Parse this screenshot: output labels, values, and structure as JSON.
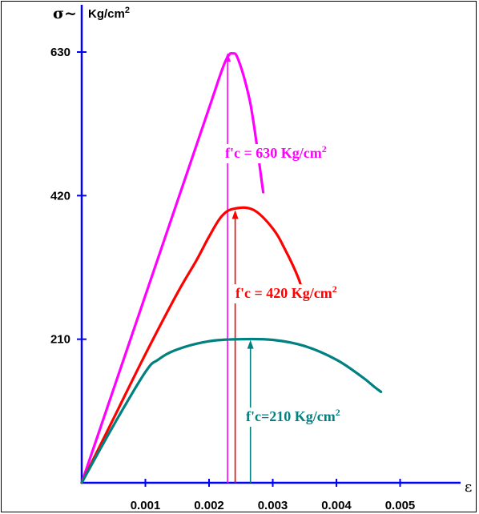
{
  "chart_data": {
    "type": "line",
    "ylabel_symbol": "σ~",
    "ylabel_unit": "Kg/cm",
    "ylabel_unit_exp": "2",
    "xlabel_symbol": "ε",
    "xlim": [
      0,
      0.00573
    ],
    "ylim": [
      0,
      680
    ],
    "y_ticks": [
      210,
      420,
      630
    ],
    "x_ticks": [
      "0.001",
      "0.002",
      "0.003",
      "0.004",
      "0.005"
    ],
    "x_tick_values": [
      0.001,
      0.002,
      0.003,
      0.004,
      0.005
    ],
    "grid": false,
    "series": [
      {
        "key": "fc630",
        "color": "#ff00ff",
        "label_main": "f'c = 630 Kg/cm",
        "label_exp": "2",
        "peak": [
          0.00229,
          630
        ],
        "points": [
          [
            0,
            0
          ],
          [
            0.0005,
            137
          ],
          [
            0.001,
            274
          ],
          [
            0.0015,
            411
          ],
          [
            0.002,
            548
          ],
          [
            0.0022,
            603
          ],
          [
            0.0023,
            624
          ],
          [
            0.00237,
            628
          ],
          [
            0.00245,
            621
          ],
          [
            0.0026,
            575
          ],
          [
            0.0027,
            526
          ],
          [
            0.00285,
            425
          ]
        ]
      },
      {
        "key": "fc420",
        "color": "#ff0000",
        "label_main": "f'c = 420 Kg/cm",
        "label_exp": "2",
        "peak": [
          0.00241,
          400
        ],
        "points": [
          [
            0,
            0
          ],
          [
            0.0005,
            94
          ],
          [
            0.001,
            188
          ],
          [
            0.0015,
            277
          ],
          [
            0.0018,
            325
          ],
          [
            0.002,
            360
          ],
          [
            0.0022,
            390
          ],
          [
            0.0024,
            401
          ],
          [
            0.0027,
            399
          ],
          [
            0.003,
            372
          ],
          [
            0.0032,
            340
          ],
          [
            0.0034,
            300
          ],
          [
            0.0035,
            270
          ]
        ]
      },
      {
        "key": "fc210",
        "color": "#008080",
        "label_main": "f'c=210 Kg/cm",
        "label_exp": "2",
        "peak": [
          0.00265,
          210
        ],
        "points": [
          [
            0,
            0
          ],
          [
            0.0005,
            84
          ],
          [
            0.001,
            162
          ],
          [
            0.0012,
            180
          ],
          [
            0.0015,
            195
          ],
          [
            0.002,
            207
          ],
          [
            0.0025,
            210
          ],
          [
            0.003,
            209
          ],
          [
            0.0035,
            200
          ],
          [
            0.004,
            180
          ],
          [
            0.0044,
            155
          ],
          [
            0.0046,
            140
          ],
          [
            0.0047,
            133
          ]
        ]
      }
    ]
  }
}
